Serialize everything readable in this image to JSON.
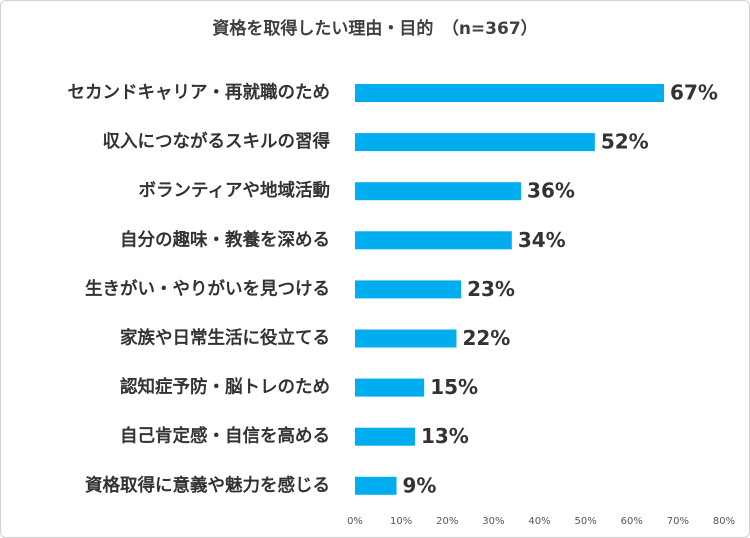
{
  "chart_data": {
    "type": "bar",
    "orientation": "horizontal",
    "title": "資格を取得したい理由・目的　（n=367）",
    "categories": [
      "セカンドキャリア・再就職のため",
      "収入につながるスキルの習得",
      "ボランティアや地域活動",
      "自分の趣味・教養を深める",
      "生きがい・やりがいを見つける",
      "家族や日常生活に役立てる",
      "認知症予防・脳トレのため",
      "自己肯定感・自信を高める",
      "資格取得に意義や魅力を感じる"
    ],
    "values": [
      67,
      52,
      36,
      34,
      23,
      22,
      15,
      13,
      9
    ],
    "value_labels": [
      "67%",
      "52%",
      "36%",
      "34%",
      "23%",
      "22%",
      "15%",
      "13%",
      "9%"
    ],
    "xlim": [
      0,
      80
    ],
    "xticks": [
      "0%",
      "10%",
      "20%",
      "30%",
      "40%",
      "50%",
      "60%",
      "70%",
      "80%"
    ],
    "xlabel": "",
    "ylabel": "",
    "grid": false,
    "bar_color": "#00aeef"
  }
}
